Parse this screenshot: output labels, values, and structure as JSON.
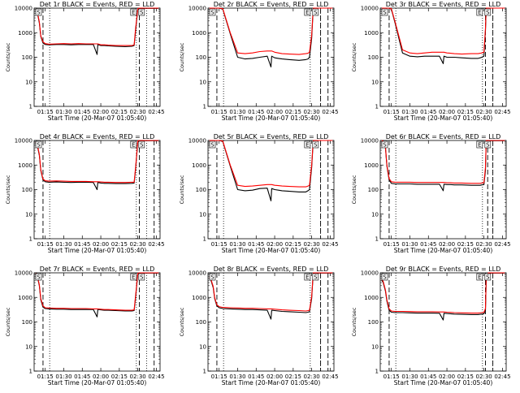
{
  "common": {
    "ylabel": "Counts/sec",
    "xlabel": "Start Time (20-Mar-07 01:05:40)",
    "x_tick_labels": [
      "01:15",
      "01:30",
      "01:45",
      "02:00",
      "02:15",
      "02:30",
      "02:45"
    ],
    "y_tick_labels": [
      "1",
      "10",
      "100",
      "1000",
      "10000"
    ],
    "series_colors": {
      "events": "#000000",
      "lld": "#ff0000"
    },
    "flag_labels": [
      "S",
      "E",
      "S"
    ]
  },
  "chart_data": [
    {
      "type": "line",
      "title": "Det 1r BLACK = Events, RED = LLD",
      "xlim": [
        1.1,
        2.8
      ],
      "ylim": [
        1,
        10000
      ],
      "yscale": "log",
      "x": [
        1.12,
        1.14,
        1.17,
        1.19,
        1.22,
        1.25,
        1.3,
        1.4,
        1.5,
        1.6,
        1.7,
        1.8,
        1.9,
        1.95,
        1.96,
        2.0,
        2.05,
        2.1,
        2.2,
        2.33,
        2.42,
        2.45,
        2.47,
        2.5,
        2.52,
        2.53,
        2.56,
        2.6,
        2.63,
        2.7,
        2.78
      ],
      "series": [
        {
          "key": "events",
          "values": [
            8000,
            7500,
            2500,
            700,
            380,
            330,
            320,
            330,
            330,
            320,
            330,
            330,
            330,
            130,
            330,
            300,
            300,
            290,
            280,
            270,
            280,
            300,
            1200,
            9000,
            9800,
            9800,
            9800,
            9800,
            9800,
            9800,
            9800
          ]
        },
        {
          "key": "lld",
          "values": [
            8500,
            8000,
            2800,
            750,
            420,
            360,
            340,
            350,
            360,
            350,
            360,
            350,
            350,
            350,
            350,
            320,
            320,
            310,
            300,
            300,
            300,
            320,
            1500,
            9500,
            10000,
            10000,
            10000,
            10000,
            10000,
            10000,
            10000
          ]
        }
      ],
      "markers_dashed": [
        1.22,
        2.52,
        2.72
      ],
      "markers_dotted": [
        1.31,
        2.48,
        2.62
      ]
    },
    {
      "type": "line",
      "title": "Det 2r BLACK = Events, RED = LLD",
      "xlim": [
        1.1,
        2.8
      ],
      "ylim": [
        1,
        10000
      ],
      "yscale": "log",
      "x": [
        1.12,
        1.14,
        1.17,
        1.19,
        1.22,
        1.25,
        1.3,
        1.4,
        1.5,
        1.6,
        1.7,
        1.8,
        1.9,
        1.95,
        1.96,
        2.0,
        2.05,
        2.1,
        2.2,
        2.33,
        2.42,
        2.45,
        2.47,
        2.5,
        2.52,
        2.53,
        2.56,
        2.6,
        2.63,
        2.7,
        2.78
      ],
      "series": [
        {
          "key": "events",
          "values": [
            10000,
            10000,
            10000,
            10000,
            10000,
            10000,
            9000,
            900,
            100,
            85,
            90,
            100,
            110,
            40,
            110,
            95,
            90,
            85,
            80,
            75,
            80,
            85,
            100,
            600,
            9500,
            10000,
            10000,
            10000,
            10000,
            10000,
            10000
          ]
        },
        {
          "key": "lld",
          "values": [
            10000,
            10000,
            10000,
            10000,
            10000,
            10000,
            9500,
            1000,
            150,
            140,
            150,
            170,
            180,
            180,
            180,
            160,
            150,
            140,
            135,
            130,
            140,
            145,
            160,
            800,
            10000,
            10000,
            10000,
            10000,
            10000,
            10000,
            10000
          ]
        }
      ],
      "markers_dashed": [
        1.22,
        2.62,
        2.72
      ],
      "markers_dotted": [
        1.31,
        2.48,
        2.62
      ]
    },
    {
      "type": "line",
      "title": "Det 3r BLACK = Events, RED = LLD",
      "xlim": [
        1.1,
        2.8
      ],
      "ylim": [
        1,
        10000
      ],
      "yscale": "log",
      "x": [
        1.12,
        1.14,
        1.17,
        1.19,
        1.22,
        1.25,
        1.3,
        1.4,
        1.5,
        1.6,
        1.7,
        1.8,
        1.9,
        1.95,
        1.96,
        2.0,
        2.05,
        2.1,
        2.2,
        2.33,
        2.42,
        2.45,
        2.47,
        2.5,
        2.52,
        2.53,
        2.56,
        2.6,
        2.63,
        2.7,
        2.78
      ],
      "series": [
        {
          "key": "events",
          "values": [
            10000,
            10000,
            10000,
            10000,
            10000,
            9000,
            2500,
            150,
            110,
            105,
            110,
            110,
            110,
            55,
            110,
            100,
            100,
            100,
            95,
            90,
            90,
            95,
            100,
            110,
            1200,
            10000,
            10000,
            10000,
            10000,
            10000,
            10000
          ]
        },
        {
          "key": "lld",
          "values": [
            10000,
            10000,
            10000,
            10000,
            10000,
            9500,
            2800,
            200,
            150,
            140,
            150,
            160,
            160,
            160,
            160,
            150,
            145,
            140,
            135,
            140,
            140,
            145,
            150,
            160,
            1500,
            10000,
            10000,
            10000,
            10000,
            10000,
            10000
          ]
        }
      ],
      "markers_dashed": [
        1.22,
        2.52,
        2.62
      ],
      "markers_dotted": [
        1.31,
        2.48,
        2.62
      ]
    },
    {
      "type": "line",
      "title": "Det 4r BLACK = Events, RED = LLD",
      "xlim": [
        1.1,
        2.8
      ],
      "ylim": [
        1,
        10000
      ],
      "yscale": "log",
      "x": [
        1.12,
        1.14,
        1.17,
        1.19,
        1.22,
        1.25,
        1.3,
        1.4,
        1.5,
        1.6,
        1.7,
        1.8,
        1.9,
        1.95,
        1.96,
        2.0,
        2.05,
        2.1,
        2.2,
        2.33,
        2.42,
        2.45,
        2.47,
        2.5,
        2.52,
        2.53,
        2.56,
        2.6,
        2.63,
        2.7,
        2.78
      ],
      "series": [
        {
          "key": "events",
          "values": [
            8000,
            7000,
            2500,
            600,
            250,
            210,
            200,
            205,
            200,
            195,
            200,
            200,
            195,
            100,
            195,
            185,
            180,
            180,
            175,
            175,
            180,
            185,
            700,
            9000,
            9800,
            9800,
            9800,
            9800,
            9800,
            9800,
            9800
          ]
        },
        {
          "key": "lld",
          "values": [
            8500,
            7500,
            2800,
            650,
            270,
            230,
            220,
            225,
            220,
            215,
            215,
            215,
            210,
            210,
            210,
            205,
            200,
            200,
            195,
            195,
            200,
            200,
            800,
            9500,
            10000,
            10000,
            10000,
            10000,
            10000,
            10000,
            10000
          ]
        }
      ],
      "markers_dashed": [
        1.22,
        2.52,
        2.72
      ],
      "markers_dotted": [
        1.31,
        2.48,
        2.62
      ]
    },
    {
      "type": "line",
      "title": "Det 5r BLACK = Events, RED = LLD",
      "xlim": [
        1.1,
        2.8
      ],
      "ylim": [
        1,
        10000
      ],
      "yscale": "log",
      "x": [
        1.12,
        1.14,
        1.17,
        1.19,
        1.22,
        1.25,
        1.3,
        1.4,
        1.5,
        1.6,
        1.7,
        1.8,
        1.9,
        1.95,
        1.96,
        2.0,
        2.05,
        2.1,
        2.2,
        2.33,
        2.42,
        2.45,
        2.47,
        2.5,
        2.52,
        2.53,
        2.56,
        2.6,
        2.63,
        2.7,
        2.78
      ],
      "series": [
        {
          "key": "events",
          "values": [
            10000,
            10000,
            10000,
            10000,
            10000,
            10000,
            9000,
            900,
            100,
            90,
            95,
            110,
            115,
            35,
            110,
            100,
            95,
            90,
            85,
            80,
            80,
            90,
            100,
            800,
            9500,
            10000,
            10000,
            10000,
            10000,
            10000,
            10000
          ]
        },
        {
          "key": "lld",
          "values": [
            10000,
            10000,
            10000,
            10000,
            10000,
            10000,
            9500,
            1000,
            150,
            135,
            140,
            150,
            160,
            160,
            160,
            150,
            145,
            140,
            135,
            130,
            130,
            140,
            150,
            1000,
            10000,
            10000,
            10000,
            10000,
            10000,
            10000,
            10000
          ]
        }
      ],
      "markers_dashed": [
        1.22,
        2.62,
        2.72
      ],
      "markers_dotted": [
        1.31,
        2.48,
        2.62
      ]
    },
    {
      "type": "line",
      "title": "Det 6r BLACK = Events, RED = LLD",
      "xlim": [
        1.1,
        2.8
      ],
      "ylim": [
        1,
        10000
      ],
      "yscale": "log",
      "x": [
        1.12,
        1.14,
        1.17,
        1.19,
        1.22,
        1.25,
        1.3,
        1.4,
        1.5,
        1.6,
        1.7,
        1.8,
        1.9,
        1.95,
        1.96,
        2.0,
        2.05,
        2.1,
        2.2,
        2.33,
        2.42,
        2.45,
        2.47,
        2.5,
        2.52,
        2.53,
        2.56,
        2.6,
        2.63,
        2.7,
        2.78
      ],
      "series": [
        {
          "key": "events",
          "values": [
            10000,
            9000,
            5000,
            900,
            250,
            180,
            170,
            170,
            170,
            165,
            165,
            165,
            165,
            90,
            165,
            160,
            160,
            155,
            155,
            150,
            150,
            150,
            155,
            160,
            600,
            9500,
            9800,
            9800,
            9800,
            9800,
            9800
          ]
        },
        {
          "key": "lld",
          "values": [
            10000,
            9500,
            5500,
            1000,
            280,
            210,
            200,
            200,
            200,
            195,
            195,
            195,
            195,
            195,
            195,
            190,
            190,
            185,
            185,
            180,
            180,
            180,
            185,
            190,
            800,
            10000,
            10000,
            10000,
            10000,
            10000,
            10000
          ]
        }
      ],
      "markers_dashed": [
        1.22,
        2.55,
        2.62
      ],
      "markers_dotted": [
        1.31,
        2.48,
        2.62
      ]
    },
    {
      "type": "line",
      "title": "Det 7r BLACK = Events, RED = LLD",
      "xlim": [
        1.1,
        2.8
      ],
      "ylim": [
        1,
        10000
      ],
      "yscale": "log",
      "x": [
        1.12,
        1.14,
        1.17,
        1.19,
        1.22,
        1.25,
        1.3,
        1.4,
        1.5,
        1.6,
        1.7,
        1.8,
        1.9,
        1.95,
        1.96,
        2.0,
        2.05,
        2.1,
        2.2,
        2.33,
        2.42,
        2.45,
        2.47,
        2.5,
        2.52,
        2.53,
        2.56,
        2.6,
        2.63,
        2.7,
        2.78
      ],
      "series": [
        {
          "key": "events",
          "values": [
            9000,
            8000,
            3000,
            800,
            400,
            350,
            340,
            330,
            330,
            320,
            320,
            320,
            320,
            160,
            320,
            310,
            300,
            300,
            290,
            280,
            280,
            290,
            1000,
            9000,
            9800,
            9800,
            9800,
            9800,
            9800,
            9800,
            9800
          ]
        },
        {
          "key": "lld",
          "values": [
            9500,
            8500,
            3300,
            900,
            450,
            380,
            370,
            360,
            360,
            350,
            350,
            350,
            340,
            340,
            340,
            330,
            320,
            320,
            310,
            300,
            300,
            310,
            1200,
            9500,
            10000,
            10000,
            10000,
            10000,
            10000,
            10000,
            10000
          ]
        }
      ],
      "markers_dashed": [
        1.22,
        2.52,
        2.72
      ],
      "markers_dotted": [
        1.31,
        2.48,
        2.62
      ]
    },
    {
      "type": "line",
      "title": "Det 8r BLACK = Events, RED = LLD",
      "xlim": [
        1.1,
        2.8
      ],
      "ylim": [
        1,
        10000
      ],
      "yscale": "log",
      "x": [
        1.12,
        1.14,
        1.17,
        1.19,
        1.22,
        1.25,
        1.3,
        1.4,
        1.5,
        1.6,
        1.7,
        1.8,
        1.9,
        1.95,
        1.96,
        2.0,
        2.05,
        2.1,
        2.2,
        2.33,
        2.42,
        2.45,
        2.47,
        2.5,
        2.52,
        2.53,
        2.56,
        2.6,
        2.63,
        2.7,
        2.78
      ],
      "series": [
        {
          "key": "events",
          "values": [
            6000,
            5000,
            2500,
            900,
            450,
            380,
            350,
            340,
            330,
            320,
            320,
            310,
            300,
            130,
            300,
            290,
            280,
            270,
            260,
            250,
            240,
            250,
            260,
            900,
            9500,
            9800,
            9800,
            9800,
            9800,
            9800,
            9800
          ]
        },
        {
          "key": "lld",
          "values": [
            6500,
            5500,
            2800,
            1000,
            500,
            420,
            390,
            380,
            370,
            360,
            360,
            350,
            340,
            340,
            340,
            330,
            320,
            310,
            300,
            290,
            280,
            290,
            300,
            1100,
            10000,
            10000,
            10000,
            10000,
            10000,
            10000,
            10000
          ]
        }
      ],
      "markers_dashed": [
        1.22,
        2.62,
        2.72
      ],
      "markers_dotted": [
        1.31,
        2.48,
        2.62
      ]
    },
    {
      "type": "line",
      "title": "Det 9r BLACK = Events, RED = LLD",
      "xlim": [
        1.1,
        2.8
      ],
      "ylim": [
        1,
        10000
      ],
      "yscale": "log",
      "x": [
        1.12,
        1.14,
        1.17,
        1.19,
        1.22,
        1.25,
        1.3,
        1.4,
        1.5,
        1.6,
        1.7,
        1.8,
        1.9,
        1.95,
        1.96,
        2.0,
        2.05,
        2.1,
        2.2,
        2.33,
        2.42,
        2.45,
        2.47,
        2.5,
        2.52,
        2.53,
        2.56,
        2.6,
        2.63,
        2.7,
        2.78
      ],
      "series": [
        {
          "key": "events",
          "values": [
            5000,
            4000,
            1800,
            700,
            300,
            250,
            240,
            240,
            235,
            230,
            230,
            230,
            225,
            120,
            225,
            220,
            215,
            210,
            205,
            200,
            200,
            205,
            210,
            215,
            300,
            5000,
            9000,
            9800,
            9800,
            9800,
            9800
          ]
        },
        {
          "key": "lld",
          "values": [
            5500,
            4500,
            2000,
            800,
            340,
            280,
            270,
            270,
            265,
            260,
            260,
            260,
            255,
            255,
            255,
            250,
            245,
            240,
            235,
            230,
            230,
            235,
            240,
            245,
            350,
            6000,
            10000,
            10000,
            10000,
            10000,
            10000
          ]
        }
      ],
      "markers_dashed": [
        1.22,
        2.52,
        2.62
      ],
      "markers_dotted": [
        1.31,
        2.48,
        2.62
      ]
    }
  ]
}
